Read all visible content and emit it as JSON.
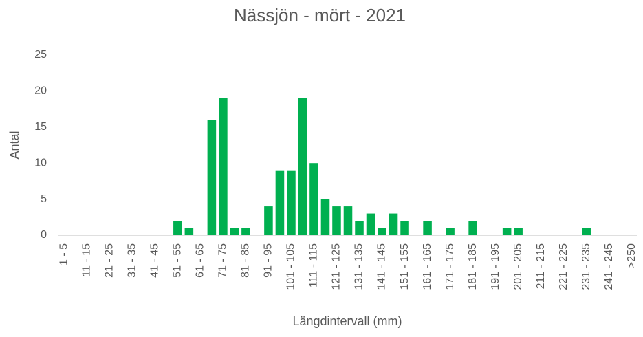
{
  "chart_data": {
    "type": "bar",
    "title": "Nässjön - mört - 2021",
    "x_label": "Längdintervall (mm)",
    "y_label": "Antal",
    "categories": [
      "1 - 5",
      null,
      "11 - 15",
      null,
      "21 - 25",
      null,
      "31 - 35",
      null,
      "41 - 45",
      null,
      "51 - 55",
      null,
      "61 - 65",
      null,
      "71 - 75",
      null,
      "81 - 85",
      null,
      "91 - 95",
      null,
      "101 - 105",
      null,
      "111 - 115",
      null,
      "121 - 125",
      null,
      "131 - 135",
      null,
      "141 - 145",
      null,
      "151 - 155",
      null,
      "161 - 165",
      null,
      "171 - 175",
      null,
      "181 - 185",
      null,
      "191 - 195",
      null,
      "201 - 205",
      null,
      "211 - 215",
      null,
      "221 - 225",
      null,
      "231 - 235",
      null,
      "241 - 245",
      null,
      ">250"
    ],
    "values": [
      0,
      0,
      0,
      0,
      0,
      0,
      0,
      0,
      0,
      0,
      2,
      1,
      0,
      16,
      19,
      1,
      1,
      0,
      4,
      9,
      9,
      19,
      10,
      5,
      4,
      4,
      2,
      3,
      1,
      3,
      2,
      0,
      2,
      0,
      1,
      0,
      2,
      0,
      0,
      1,
      1,
      0,
      0,
      0,
      0,
      0,
      1,
      0,
      0,
      0,
      0
    ],
    "color": "#00b050",
    "ylim": [
      0,
      25
    ],
    "yticks": [
      0,
      5,
      10,
      15,
      20,
      25
    ],
    "grid": false
  }
}
